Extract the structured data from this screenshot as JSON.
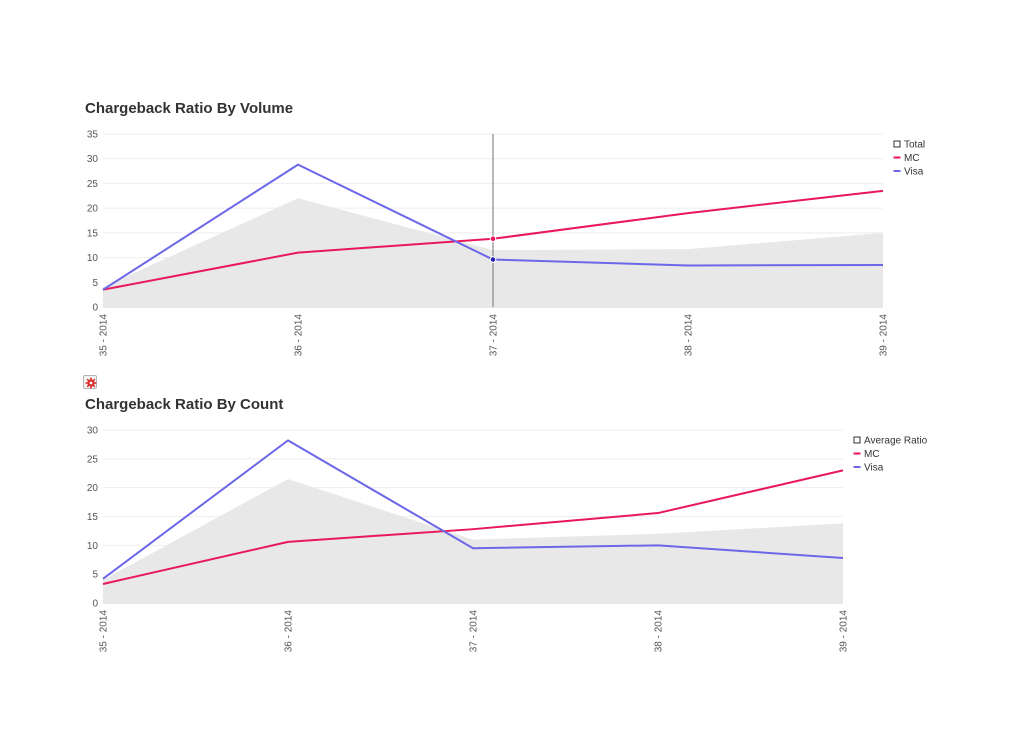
{
  "charts": {
    "volume": {
      "title": "Chargeback Ratio By Volume"
    },
    "count": {
      "title": "Chargeback Ratio By Count"
    }
  },
  "settings_icon": "gear-icon",
  "colors": {
    "total_area": "#e8e8e8",
    "mc": "#e8185a",
    "visa": "#6b67e8",
    "crosshair": "#888888",
    "grid": "#eeeeee"
  },
  "chart_data": [
    {
      "type": "line",
      "title": "Chargeback Ratio By Volume",
      "categories": [
        "35 - 2014",
        "36 - 2014",
        "37 - 2014",
        "38 - 2014",
        "39 - 2014"
      ],
      "ylim": [
        0,
        35
      ],
      "yticks": [
        "0",
        "5",
        "10",
        "15",
        "20",
        "25",
        "30",
        "35"
      ],
      "legend_position": "top-right",
      "hover_category": "37 - 2014",
      "series": [
        {
          "name": "Total",
          "kind": "area",
          "values": [
            4,
            22,
            11.5,
            11.7,
            15
          ]
        },
        {
          "name": "MC",
          "kind": "line",
          "values": [
            3.5,
            11,
            13.8,
            19,
            23.5
          ]
        },
        {
          "name": "Visa",
          "kind": "line",
          "values": [
            3.5,
            28.8,
            9.6,
            8.4,
            8.5
          ]
        }
      ]
    },
    {
      "type": "line",
      "title": "Chargeback Ratio By Count",
      "categories": [
        "35 - 2014",
        "36 - 2014",
        "37 - 2014",
        "38 - 2014",
        "39 - 2014"
      ],
      "ylim": [
        0,
        30
      ],
      "yticks": [
        "0",
        "5",
        "10",
        "15",
        "20",
        "25",
        "30"
      ],
      "legend_position": "top-right",
      "series": [
        {
          "name": "Average Ratio",
          "kind": "area",
          "values": [
            4,
            21.5,
            11,
            12,
            13.8
          ]
        },
        {
          "name": "MC",
          "kind": "line",
          "values": [
            3.3,
            10.6,
            12.8,
            15.6,
            23
          ]
        },
        {
          "name": "Visa",
          "kind": "line",
          "values": [
            4.2,
            28.2,
            9.5,
            10,
            7.8
          ]
        }
      ]
    }
  ]
}
